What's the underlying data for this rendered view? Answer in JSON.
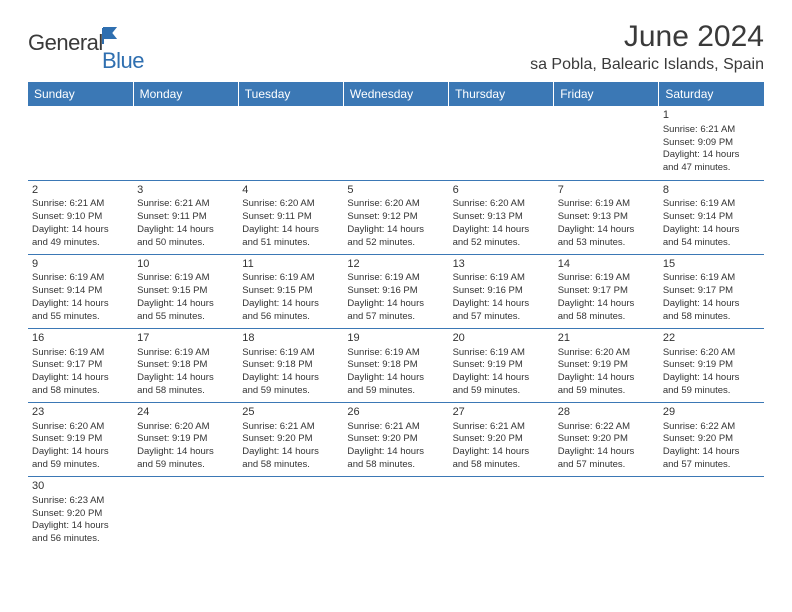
{
  "brand": {
    "general": "General",
    "blue": "Blue"
  },
  "title": "June 2024",
  "location": "sa Pobla, Balearic Islands, Spain",
  "colors": {
    "header_bg": "#3b78b5",
    "header_text": "#ffffff",
    "border": "#3b78b5",
    "text": "#333333",
    "logo_blue": "#2f6fb0"
  },
  "weekdays": [
    "Sunday",
    "Monday",
    "Tuesday",
    "Wednesday",
    "Thursday",
    "Friday",
    "Saturday"
  ],
  "weeks": [
    [
      null,
      null,
      null,
      null,
      null,
      null,
      {
        "d": "1",
        "sr": "Sunrise: 6:21 AM",
        "ss": "Sunset: 9:09 PM",
        "dl1": "Daylight: 14 hours",
        "dl2": "and 47 minutes."
      }
    ],
    [
      {
        "d": "2",
        "sr": "Sunrise: 6:21 AM",
        "ss": "Sunset: 9:10 PM",
        "dl1": "Daylight: 14 hours",
        "dl2": "and 49 minutes."
      },
      {
        "d": "3",
        "sr": "Sunrise: 6:21 AM",
        "ss": "Sunset: 9:11 PM",
        "dl1": "Daylight: 14 hours",
        "dl2": "and 50 minutes."
      },
      {
        "d": "4",
        "sr": "Sunrise: 6:20 AM",
        "ss": "Sunset: 9:11 PM",
        "dl1": "Daylight: 14 hours",
        "dl2": "and 51 minutes."
      },
      {
        "d": "5",
        "sr": "Sunrise: 6:20 AM",
        "ss": "Sunset: 9:12 PM",
        "dl1": "Daylight: 14 hours",
        "dl2": "and 52 minutes."
      },
      {
        "d": "6",
        "sr": "Sunrise: 6:20 AM",
        "ss": "Sunset: 9:13 PM",
        "dl1": "Daylight: 14 hours",
        "dl2": "and 52 minutes."
      },
      {
        "d": "7",
        "sr": "Sunrise: 6:19 AM",
        "ss": "Sunset: 9:13 PM",
        "dl1": "Daylight: 14 hours",
        "dl2": "and 53 minutes."
      },
      {
        "d": "8",
        "sr": "Sunrise: 6:19 AM",
        "ss": "Sunset: 9:14 PM",
        "dl1": "Daylight: 14 hours",
        "dl2": "and 54 minutes."
      }
    ],
    [
      {
        "d": "9",
        "sr": "Sunrise: 6:19 AM",
        "ss": "Sunset: 9:14 PM",
        "dl1": "Daylight: 14 hours",
        "dl2": "and 55 minutes."
      },
      {
        "d": "10",
        "sr": "Sunrise: 6:19 AM",
        "ss": "Sunset: 9:15 PM",
        "dl1": "Daylight: 14 hours",
        "dl2": "and 55 minutes."
      },
      {
        "d": "11",
        "sr": "Sunrise: 6:19 AM",
        "ss": "Sunset: 9:15 PM",
        "dl1": "Daylight: 14 hours",
        "dl2": "and 56 minutes."
      },
      {
        "d": "12",
        "sr": "Sunrise: 6:19 AM",
        "ss": "Sunset: 9:16 PM",
        "dl1": "Daylight: 14 hours",
        "dl2": "and 57 minutes."
      },
      {
        "d": "13",
        "sr": "Sunrise: 6:19 AM",
        "ss": "Sunset: 9:16 PM",
        "dl1": "Daylight: 14 hours",
        "dl2": "and 57 minutes."
      },
      {
        "d": "14",
        "sr": "Sunrise: 6:19 AM",
        "ss": "Sunset: 9:17 PM",
        "dl1": "Daylight: 14 hours",
        "dl2": "and 58 minutes."
      },
      {
        "d": "15",
        "sr": "Sunrise: 6:19 AM",
        "ss": "Sunset: 9:17 PM",
        "dl1": "Daylight: 14 hours",
        "dl2": "and 58 minutes."
      }
    ],
    [
      {
        "d": "16",
        "sr": "Sunrise: 6:19 AM",
        "ss": "Sunset: 9:17 PM",
        "dl1": "Daylight: 14 hours",
        "dl2": "and 58 minutes."
      },
      {
        "d": "17",
        "sr": "Sunrise: 6:19 AM",
        "ss": "Sunset: 9:18 PM",
        "dl1": "Daylight: 14 hours",
        "dl2": "and 58 minutes."
      },
      {
        "d": "18",
        "sr": "Sunrise: 6:19 AM",
        "ss": "Sunset: 9:18 PM",
        "dl1": "Daylight: 14 hours",
        "dl2": "and 59 minutes."
      },
      {
        "d": "19",
        "sr": "Sunrise: 6:19 AM",
        "ss": "Sunset: 9:18 PM",
        "dl1": "Daylight: 14 hours",
        "dl2": "and 59 minutes."
      },
      {
        "d": "20",
        "sr": "Sunrise: 6:19 AM",
        "ss": "Sunset: 9:19 PM",
        "dl1": "Daylight: 14 hours",
        "dl2": "and 59 minutes."
      },
      {
        "d": "21",
        "sr": "Sunrise: 6:20 AM",
        "ss": "Sunset: 9:19 PM",
        "dl1": "Daylight: 14 hours",
        "dl2": "and 59 minutes."
      },
      {
        "d": "22",
        "sr": "Sunrise: 6:20 AM",
        "ss": "Sunset: 9:19 PM",
        "dl1": "Daylight: 14 hours",
        "dl2": "and 59 minutes."
      }
    ],
    [
      {
        "d": "23",
        "sr": "Sunrise: 6:20 AM",
        "ss": "Sunset: 9:19 PM",
        "dl1": "Daylight: 14 hours",
        "dl2": "and 59 minutes."
      },
      {
        "d": "24",
        "sr": "Sunrise: 6:20 AM",
        "ss": "Sunset: 9:19 PM",
        "dl1": "Daylight: 14 hours",
        "dl2": "and 59 minutes."
      },
      {
        "d": "25",
        "sr": "Sunrise: 6:21 AM",
        "ss": "Sunset: 9:20 PM",
        "dl1": "Daylight: 14 hours",
        "dl2": "and 58 minutes."
      },
      {
        "d": "26",
        "sr": "Sunrise: 6:21 AM",
        "ss": "Sunset: 9:20 PM",
        "dl1": "Daylight: 14 hours",
        "dl2": "and 58 minutes."
      },
      {
        "d": "27",
        "sr": "Sunrise: 6:21 AM",
        "ss": "Sunset: 9:20 PM",
        "dl1": "Daylight: 14 hours",
        "dl2": "and 58 minutes."
      },
      {
        "d": "28",
        "sr": "Sunrise: 6:22 AM",
        "ss": "Sunset: 9:20 PM",
        "dl1": "Daylight: 14 hours",
        "dl2": "and 57 minutes."
      },
      {
        "d": "29",
        "sr": "Sunrise: 6:22 AM",
        "ss": "Sunset: 9:20 PM",
        "dl1": "Daylight: 14 hours",
        "dl2": "and 57 minutes."
      }
    ],
    [
      {
        "d": "30",
        "sr": "Sunrise: 6:23 AM",
        "ss": "Sunset: 9:20 PM",
        "dl1": "Daylight: 14 hours",
        "dl2": "and 56 minutes."
      },
      null,
      null,
      null,
      null,
      null,
      null
    ]
  ]
}
